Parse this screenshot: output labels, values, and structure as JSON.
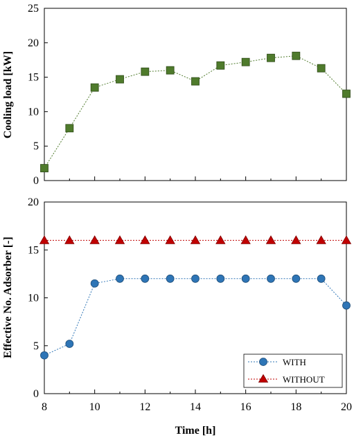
{
  "chart_data": [
    {
      "type": "line",
      "x": [
        8,
        9,
        10,
        11,
        12,
        13,
        14,
        15,
        16,
        17,
        18,
        19,
        20
      ],
      "series": [
        {
          "values": [
            1.8,
            7.6,
            13.5,
            14.7,
            15.8,
            16.0,
            14.4,
            16.7,
            17.2,
            17.8,
            18.1,
            16.3,
            12.6
          ],
          "color": "#4f7b2c",
          "marker": "square",
          "line_style": "dotted"
        }
      ],
      "xlabel": "",
      "ylabel": "Cooling load [kW]",
      "xlim": [
        8,
        20
      ],
      "ylim": [
        0,
        25
      ],
      "yticks": [
        0,
        5,
        10,
        15,
        20,
        25
      ],
      "grid": false,
      "legend": null
    },
    {
      "type": "line",
      "x": [
        8,
        9,
        10,
        11,
        12,
        13,
        14,
        15,
        16,
        17,
        18,
        19,
        20
      ],
      "series": [
        {
          "name": "WITH",
          "values": [
            4,
            5.2,
            11.5,
            12,
            12,
            12,
            12,
            12,
            12,
            12,
            12,
            12,
            9.2
          ],
          "color": "#2e75b6",
          "marker": "circle",
          "line_style": "dotted"
        },
        {
          "name": "WITHOUT",
          "values": [
            16,
            16,
            16,
            16,
            16,
            16,
            16,
            16,
            16,
            16,
            16,
            16,
            16
          ],
          "color": "#c00000",
          "marker": "triangle",
          "line_style": "dotted"
        }
      ],
      "xlabel": "Time [h]",
      "ylabel": "Effective No. Adsorber [-]",
      "xlim": [
        8,
        20
      ],
      "ylim": [
        0,
        20
      ],
      "xticks": [
        8,
        10,
        12,
        14,
        16,
        18,
        20
      ],
      "yticks": [
        0,
        5,
        10,
        15,
        20
      ],
      "grid": false,
      "legend": "bottom-right"
    }
  ]
}
